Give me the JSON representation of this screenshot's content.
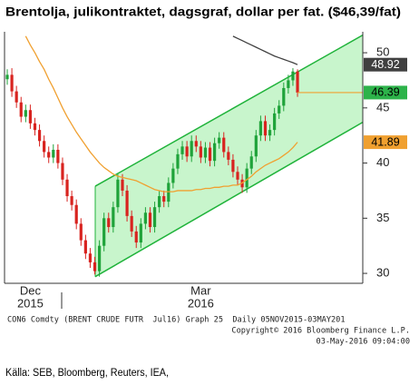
{
  "chart_data": {
    "type": "candlestick",
    "title": "Brentolja, julikontraktet, dagsgraf, dollar per fat. ($46,39/fat)",
    "categories": [
      null,
      null,
      null,
      null,
      null,
      "Dec",
      null,
      null,
      null,
      null,
      null,
      null,
      null,
      null,
      null,
      null,
      null,
      null,
      null,
      null,
      null,
      null,
      null,
      null,
      null,
      null,
      null,
      null,
      null,
      null,
      null,
      null,
      null,
      null,
      null,
      null,
      null,
      null,
      null,
      null,
      null,
      null,
      "Mar",
      null,
      null,
      null,
      null,
      null,
      null,
      null,
      null,
      null,
      null,
      null,
      null,
      null,
      null,
      null,
      null,
      null,
      null,
      null,
      null,
      null
    ],
    "category_years": [
      null,
      null,
      null,
      null,
      null,
      "2015",
      null,
      null,
      null,
      null,
      null,
      null,
      null,
      null,
      null,
      null,
      null,
      null,
      null,
      null,
      null,
      null,
      null,
      null,
      null,
      null,
      null,
      null,
      null,
      null,
      null,
      null,
      null,
      null,
      null,
      null,
      null,
      null,
      null,
      null,
      null,
      null,
      "2016",
      null,
      null,
      null,
      null,
      null,
      null,
      null,
      null,
      null,
      null,
      null,
      null,
      null,
      null,
      null,
      null,
      null,
      null,
      null,
      null,
      null
    ],
    "open": [
      47.6,
      48.0,
      46.5,
      45.5,
      44.2,
      44.8,
      43.6,
      43.0,
      42.0,
      41.0,
      40.5,
      41.2,
      40.0,
      38.5,
      37.0,
      36.2,
      34.5,
      33.0,
      31.8,
      31.0,
      30.2,
      32.5,
      35.0,
      34.2,
      36.0,
      38.5,
      37.5,
      35.2,
      33.8,
      32.8,
      34.5,
      35.5,
      34.2,
      36.0,
      37.0,
      36.5,
      38.2,
      39.5,
      40.8,
      41.5,
      40.6,
      42.0,
      41.5,
      40.5,
      41.4,
      40.2,
      41.8,
      42.3,
      41.0,
      40.3,
      39.2,
      38.5,
      37.8,
      39.5,
      40.6,
      42.5,
      43.8,
      42.5,
      43.0,
      44.5,
      45.2,
      46.8,
      47.5,
      48.3
    ],
    "high": [
      48.5,
      48.6,
      47.0,
      46.0,
      45.3,
      45.3,
      44.1,
      43.5,
      42.5,
      41.5,
      41.7,
      41.7,
      40.5,
      39.0,
      37.5,
      36.7,
      35.0,
      33.5,
      32.3,
      31.5,
      33.0,
      35.5,
      35.5,
      36.5,
      39.0,
      39.0,
      38.0,
      35.7,
      34.3,
      35.0,
      36.0,
      36.0,
      36.5,
      37.5,
      37.5,
      38.7,
      40.0,
      41.3,
      42.0,
      42.0,
      42.5,
      42.5,
      42.0,
      41.9,
      41.9,
      42.3,
      42.8,
      42.8,
      41.5,
      40.8,
      39.7,
      39.0,
      40.0,
      41.1,
      43.0,
      44.3,
      44.3,
      43.5,
      45.0,
      45.7,
      47.3,
      48.0,
      48.6,
      48.5
    ],
    "low": [
      47.1,
      46.0,
      45.0,
      43.7,
      43.7,
      43.1,
      42.5,
      41.5,
      40.5,
      40.0,
      40.0,
      39.5,
      38.0,
      36.5,
      35.7,
      34.0,
      32.5,
      31.3,
      30.5,
      29.9,
      29.7,
      32.0,
      33.7,
      33.7,
      35.5,
      37.0,
      34.7,
      33.3,
      32.3,
      32.3,
      34.0,
      33.7,
      33.7,
      35.5,
      36.0,
      36.0,
      37.7,
      39.0,
      40.3,
      40.1,
      40.1,
      41.0,
      40.0,
      40.0,
      39.7,
      39.7,
      41.3,
      40.5,
      39.8,
      38.7,
      38.0,
      37.3,
      37.3,
      39.0,
      40.1,
      42.0,
      42.0,
      42.0,
      42.5,
      44.0,
      44.7,
      46.3,
      47.0,
      46.0
    ],
    "close": [
      48.0,
      46.5,
      45.5,
      44.2,
      44.8,
      43.6,
      43.0,
      42.0,
      41.0,
      40.5,
      41.2,
      40.0,
      38.5,
      37.0,
      36.2,
      34.5,
      33.0,
      31.8,
      31.0,
      30.2,
      32.5,
      35.0,
      34.2,
      36.0,
      38.5,
      37.5,
      35.2,
      33.8,
      32.8,
      34.5,
      35.5,
      34.2,
      36.0,
      37.0,
      36.5,
      38.2,
      39.5,
      40.8,
      41.5,
      40.6,
      42.0,
      41.5,
      40.5,
      41.4,
      40.2,
      41.8,
      42.3,
      41.0,
      40.3,
      39.2,
      38.5,
      37.8,
      39.5,
      40.6,
      42.5,
      43.8,
      42.5,
      43.0,
      44.5,
      45.2,
      46.8,
      47.5,
      48.3,
      46.39
    ],
    "up_color": "#1fa33a",
    "down_color": "#d8231f",
    "lines": [
      {
        "color": "#f0a030",
        "values": [
          null,
          null,
          null,
          null,
          51.5,
          50.7,
          50.0,
          49.2,
          48.5,
          47.6,
          46.8,
          45.9,
          45.0,
          44.2,
          43.5,
          42.8,
          42.2,
          41.6,
          41.0,
          40.5,
          40.0,
          39.6,
          39.3,
          39.0,
          38.8,
          38.7,
          38.6,
          38.5,
          38.4,
          38.2,
          38.0,
          37.8,
          37.6,
          37.5,
          37.4,
          37.4,
          37.4,
          37.5,
          37.5,
          37.5,
          37.5,
          37.6,
          37.6,
          37.7,
          37.7,
          37.8,
          37.8,
          37.9,
          37.9,
          38.0,
          38.0,
          38.2,
          38.5,
          38.8,
          39.2,
          39.5,
          39.8,
          40.0,
          40.2,
          40.4,
          40.7,
          41.0,
          41.4,
          41.89
        ]
      },
      {
        "color": "#404040",
        "values": [
          null,
          null,
          null,
          null,
          null,
          null,
          null,
          null,
          null,
          null,
          null,
          null,
          null,
          null,
          null,
          null,
          null,
          null,
          null,
          null,
          null,
          null,
          null,
          null,
          null,
          null,
          null,
          null,
          null,
          null,
          null,
          null,
          null,
          null,
          null,
          null,
          null,
          null,
          null,
          null,
          null,
          null,
          null,
          null,
          null,
          null,
          null,
          null,
          null,
          51.5,
          51.3,
          51.1,
          50.9,
          50.7,
          50.5,
          50.3,
          50.1,
          49.9,
          49.7,
          49.55,
          49.4,
          49.25,
          49.1,
          48.92
        ]
      }
    ],
    "last_price_color": "#2db34a",
    "channel": {
      "upper": [
        37.9,
        51.6
      ],
      "lower": [
        29.7,
        43.7
      ],
      "color": "#1fb33a",
      "fill": "#c8f5cc"
    },
    "ylim": [
      29.1,
      51.9
    ],
    "yticks": [
      30,
      35,
      40,
      45,
      50
    ],
    "footer": [
      "CON6 Comdty (BRENT CRUDE FUTR  Jul16) Graph 25  Daily 05NOV2015-03MAY201",
      "Copyright© 2016 Bloomberg Finance L.P.",
      "03-May-2016 09:04:00"
    ],
    "source": "Källa: SEB, Bloomberg, Reuters, IEA,"
  }
}
